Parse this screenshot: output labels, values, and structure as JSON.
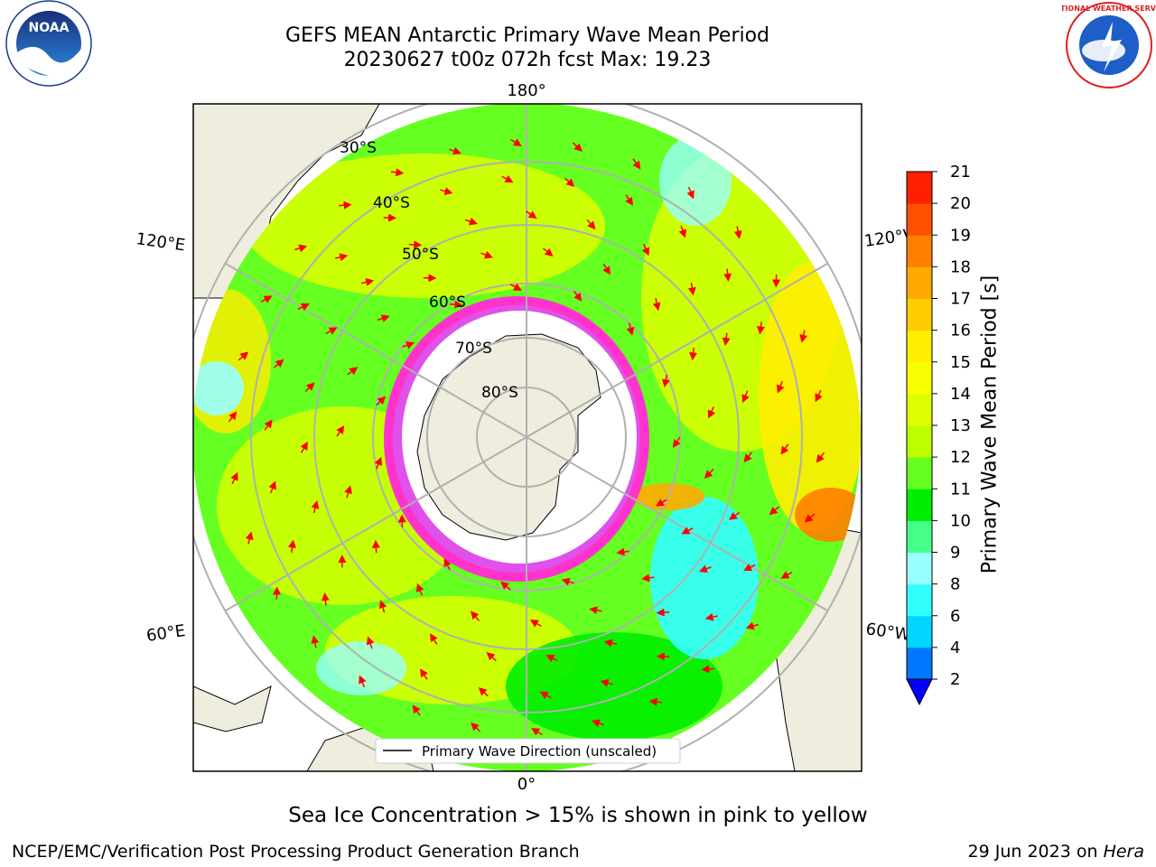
{
  "title": {
    "line1": "GEFS MEAN Antarctic Primary Wave Mean Period",
    "line2": "20230627 t00z 072h fcst   Max: 19.23"
  },
  "map": {
    "projection": "south-polar-stereographic",
    "lon_labels": {
      "top": "180°",
      "upper_left": "120°E",
      "upper_right": "120°W",
      "lower_left": "60°E",
      "lower_right": "60°W",
      "bottom": "0°"
    },
    "lat_labels": [
      "30°S",
      "40°S",
      "50°S",
      "60°S",
      "70°S",
      "80°S"
    ],
    "legend": "Primary Wave Direction (unscaled)",
    "arrow_color": "#ff0000",
    "sea_ice_colors": [
      "#ff33cc",
      "#cc66ff",
      "#ffcc33"
    ]
  },
  "colorbar": {
    "title": "Primary Wave Mean Period [s]",
    "ticks": [
      "2",
      "4",
      "6",
      "8",
      "9",
      "10",
      "11",
      "12",
      "13",
      "14",
      "15",
      "16",
      "17",
      "18",
      "19",
      "20",
      "21"
    ],
    "colors": [
      "#0077ff",
      "#00d6ff",
      "#33ffff",
      "#99ffff",
      "#44ff88",
      "#00ee00",
      "#66ff22",
      "#bbff00",
      "#ddff00",
      "#f8ff00",
      "#ffee00",
      "#ffcc00",
      "#ffaa00",
      "#ff8000",
      "#ff5000",
      "#ff2000"
    ],
    "extend_color": "#0000ff"
  },
  "caption": "Sea Ice Concentration > 15% is shown in pink to yellow",
  "footer": {
    "left": "NCEP/EMC/Verification Post Processing Product Generation Branch",
    "right_date": "29 Jun 2023 on",
    "right_host": "Hera"
  },
  "logos": {
    "noaa": {
      "text": "NOAA"
    },
    "nws": {
      "text": "NATIONAL WEATHER SERVICE"
    }
  }
}
